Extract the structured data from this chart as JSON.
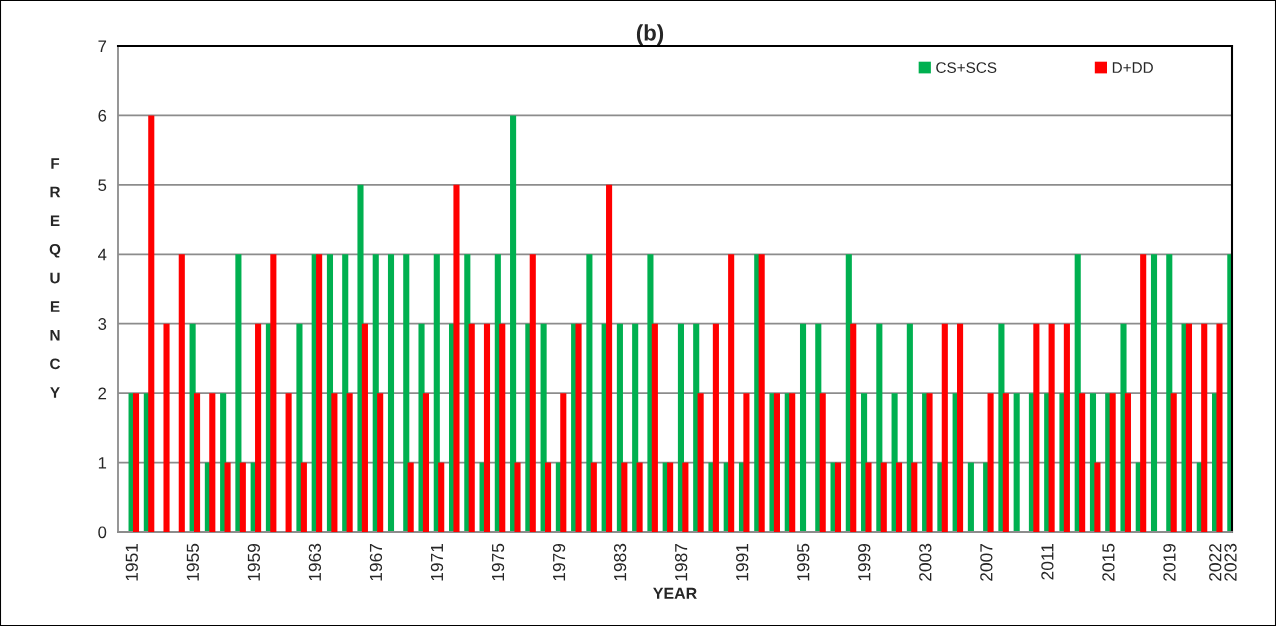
{
  "chart_data": {
    "type": "bar",
    "title": "(b)",
    "xlabel": "YEAR",
    "ylabel": "FREQUENCY",
    "categories": [
      "1951",
      null,
      null,
      null,
      "1955",
      null,
      null,
      null,
      "1959",
      null,
      null,
      null,
      "1963",
      null,
      null,
      null,
      "1967",
      null,
      null,
      null,
      "1971",
      null,
      null,
      null,
      "1975",
      null,
      null,
      null,
      "1979",
      null,
      null,
      null,
      "1983",
      null,
      null,
      null,
      "1987",
      null,
      null,
      null,
      "1991",
      null,
      null,
      null,
      "1995",
      null,
      null,
      null,
      "1999",
      null,
      null,
      null,
      "2003",
      null,
      null,
      null,
      "2007",
      null,
      null,
      null,
      "2011",
      null,
      null,
      null,
      "2015",
      null,
      null,
      null,
      "2019",
      null,
      null,
      "2022",
      "2023"
    ],
    "series": [
      {
        "name": "CS+SCS",
        "color": "#00b050",
        "values": [
          2,
          2,
          0,
          0,
          3,
          1,
          2,
          4,
          1,
          3,
          0,
          3,
          4,
          4,
          4,
          5,
          4,
          4,
          4,
          3,
          4,
          3,
          4,
          1,
          4,
          6,
          3,
          3,
          1,
          3,
          4,
          3,
          3,
          3,
          4,
          1,
          3,
          3,
          1,
          1,
          1,
          4,
          2,
          2,
          3,
          3,
          1,
          4,
          2,
          3,
          2,
          3,
          2,
          1,
          2,
          1,
          1,
          3,
          2,
          2,
          2,
          2,
          4,
          2,
          2,
          3,
          1,
          4,
          4,
          3,
          1,
          2,
          4
        ]
      },
      {
        "name": "D+DD",
        "color": "#ff0000",
        "values": [
          2,
          6,
          3,
          4,
          2,
          2,
          1,
          1,
          3,
          4,
          2,
          1,
          4,
          2,
          2,
          3,
          2,
          0,
          1,
          2,
          1,
          5,
          3,
          3,
          3,
          1,
          4,
          1,
          2,
          3,
          1,
          5,
          1,
          1,
          3,
          1,
          1,
          2,
          3,
          4,
          2,
          4,
          2,
          2,
          0,
          2,
          1,
          3,
          1,
          1,
          1,
          1,
          2,
          3,
          3,
          0,
          2,
          2,
          0,
          3,
          3,
          3,
          2,
          1,
          2,
          2,
          4,
          0,
          2,
          3,
          3,
          3,
          null
        ]
      }
    ],
    "ylim": [
      0,
      7
    ],
    "yticks": [
      0,
      1,
      2,
      3,
      4,
      5,
      6,
      7
    ],
    "grid": "y",
    "legend": "top right"
  }
}
